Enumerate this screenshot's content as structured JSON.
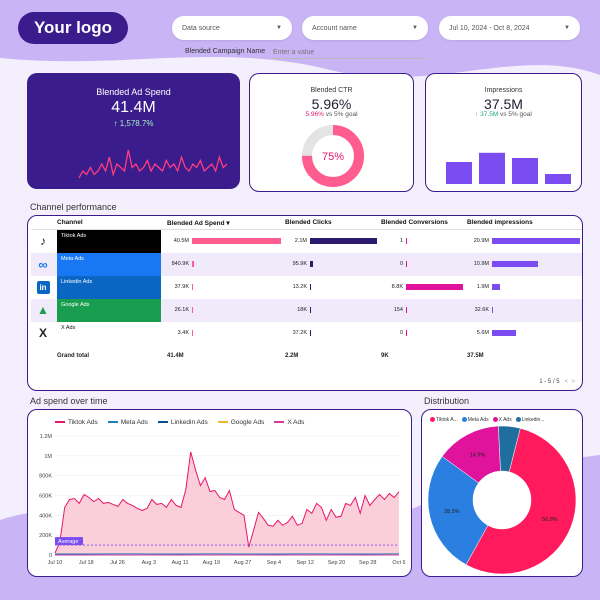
{
  "header": {
    "logo_text": "Your logo",
    "data_source": "Data source",
    "account_name": "Account name",
    "date_range": "Jul 10, 2024 - Oct 8, 2024",
    "blended_label": "Blended Campaign Name",
    "blended_placeholder": "Enter a value"
  },
  "kpi": {
    "spend": {
      "title": "Blended Ad Spend",
      "value": "41.4M",
      "delta": "↑ 1,578.7%"
    },
    "ctr": {
      "title": "Blended CTR",
      "value": "5.96%",
      "goal_value": "5.96%",
      "goal_text": " vs 5% goal",
      "gauge_label": "75%",
      "gauge_fraction": 0.75
    },
    "impressions": {
      "title": "Impressions",
      "value": "37.5M",
      "goal_value": "↑ 37.5M",
      "goal_text": " vs 5% goal"
    }
  },
  "spark": [
    3,
    5,
    4,
    6,
    4,
    5,
    7,
    5,
    9,
    4,
    7,
    6,
    5,
    11,
    6,
    7,
    5,
    6,
    8,
    5,
    7,
    6,
    5,
    8,
    6,
    7,
    5,
    9,
    6,
    5,
    7,
    6,
    8,
    5,
    6,
    7,
    5,
    9,
    6,
    7
  ],
  "imp_bars": [
    0.55,
    0.78,
    0.65,
    0.25
  ],
  "table": {
    "section_title": "Channel performance",
    "headers": [
      "Channel",
      "Blended Ad Spend ▾",
      "Blended Clicks",
      "Blended Conversions",
      "Blended impressions"
    ],
    "rows": [
      {
        "channel": "Tiktok Ads",
        "icon": "tiktok-icon",
        "color": "#000000",
        "spend": "40.5M",
        "spend_f": 1.0,
        "clicks": "2.1M",
        "clicks_f": 1.0,
        "conv": "1",
        "conv_f": 0.01,
        "imp": "20.9M",
        "imp_f": 1.0
      },
      {
        "channel": "Meta Ads",
        "icon": "meta-icon",
        "color": "#1877f2",
        "spend": "840.9K",
        "spend_f": 0.02,
        "clicks": "95.9K",
        "clicks_f": 0.05,
        "conv": "0",
        "conv_f": 0.0,
        "imp": "10.9M",
        "imp_f": 0.52
      },
      {
        "channel": "Linkedin Ads",
        "icon": "linkedin-icon",
        "color": "#0a66c2",
        "spend": "37.9K",
        "spend_f": 0.01,
        "clicks": "13.2K",
        "clicks_f": 0.01,
        "conv": "8.8K",
        "conv_f": 1.0,
        "imp": "1.9M",
        "imp_f": 0.09
      },
      {
        "channel": "Google Ads",
        "icon": "google-ads-icon",
        "color": "#189e4e",
        "spend": "26.1K",
        "spend_f": 0.005,
        "clicks": "18K",
        "clicks_f": 0.01,
        "conv": "154",
        "conv_f": 0.02,
        "imp": "32.6K",
        "imp_f": 0.003
      },
      {
        "channel": "X Ads",
        "icon": "x-icon",
        "color": "#ffffff",
        "spend": "3.4K",
        "spend_f": 0.0,
        "clicks": "37.2K",
        "clicks_f": 0.02,
        "conv": "0",
        "conv_f": 0.0,
        "imp": "5.6M",
        "imp_f": 0.27
      }
    ],
    "total": {
      "label": "Grand total",
      "spend": "41.4M",
      "clicks": "2.2M",
      "conv": "9K",
      "imp": "37.5M"
    },
    "pager": "1 - 5 / 5"
  },
  "over_time": {
    "title": "Ad spend over time",
    "legend": [
      {
        "name": "Tiktok Ads",
        "color": "#e8166b"
      },
      {
        "name": "Meta Ads",
        "color": "#1f7fb8"
      },
      {
        "name": "Linkedin Ads",
        "color": "#0a4f8a"
      },
      {
        "name": "Google Ads",
        "color": "#f0b92a"
      },
      {
        "name": "X Ads",
        "color": "#d63ba0"
      }
    ],
    "average_label": "Average"
  },
  "distribution": {
    "title": "Distribution",
    "legend": [
      {
        "name": "Tiktok A...",
        "color": "#ff1a5e"
      },
      {
        "name": "Meta Ads",
        "color": "#2a7fe0"
      },
      {
        "name": "X Ads",
        "color": "#e0149c"
      },
      {
        "name": "Linkedin...",
        "color": "#1f6f9e"
      }
    ]
  },
  "chart_data": [
    {
      "type": "line",
      "title": "Ad spend over time",
      "xlabel": "",
      "ylabel": "",
      "ylim": [
        0,
        1200000
      ],
      "yticks": [
        "0",
        "200K",
        "400K",
        "600K",
        "800K",
        "1M",
        "1.2M"
      ],
      "xticks": [
        "Jul 10",
        "Jul 18",
        "Jul 26",
        "Aug 3",
        "Aug 11",
        "Aug 19",
        "Aug 27",
        "Sep 4",
        "Sep 12",
        "Sep 20",
        "Sep 28",
        "Oct 6"
      ],
      "series": [
        {
          "name": "Tiktok Ads",
          "values": [
            20000,
            130000,
            480000,
            560000,
            570000,
            520000,
            610000,
            580000,
            540000,
            570000,
            520000,
            530000,
            510000,
            490000,
            560000,
            520000,
            500000,
            470000,
            450000,
            470000,
            560000,
            510000,
            520000,
            480000,
            560000,
            500000,
            480000,
            660000,
            1040000,
            860000,
            700000,
            780000,
            640000,
            650000,
            580000,
            560000,
            650000,
            460000,
            430000,
            400000,
            80000,
            250000,
            430000,
            370000,
            300000,
            290000,
            350000,
            300000,
            330000,
            390000,
            300000,
            320000,
            460000,
            420000,
            520000,
            480000,
            350000,
            460000,
            380000,
            390000,
            520000,
            500000,
            580000,
            420000,
            600000,
            500000,
            560000,
            610000,
            560000,
            620000,
            580000,
            640000
          ]
        },
        {
          "name": "Meta Ads",
          "values": [
            10000,
            10000,
            12000,
            11000,
            10000,
            12000,
            11000,
            10000,
            12000,
            11000,
            10000,
            12000
          ]
        },
        {
          "name": "Linkedin Ads",
          "values": [
            1000,
            1000,
            1000,
            1000,
            1000,
            1000,
            1000,
            1000,
            1000,
            1000,
            1000,
            1000
          ]
        },
        {
          "name": "Google Ads",
          "values": [
            500,
            500,
            500,
            500,
            500,
            500,
            500,
            500,
            500,
            500,
            500,
            500
          ]
        },
        {
          "name": "X Ads",
          "values": [
            100,
            100,
            100,
            100,
            100,
            100,
            100,
            100,
            100,
            100,
            100,
            100
          ]
        }
      ],
      "average": 100000
    },
    {
      "type": "pie",
      "title": "Distribution",
      "categories": [
        "Tiktok Ads",
        "Meta Ads",
        "X Ads",
        "Linkedin Ads"
      ],
      "values": [
        56.8,
        28.3,
        14.9,
        5.0
      ],
      "labels": [
        "56.8%",
        "28.3%",
        "14.9%",
        ""
      ]
    }
  ]
}
